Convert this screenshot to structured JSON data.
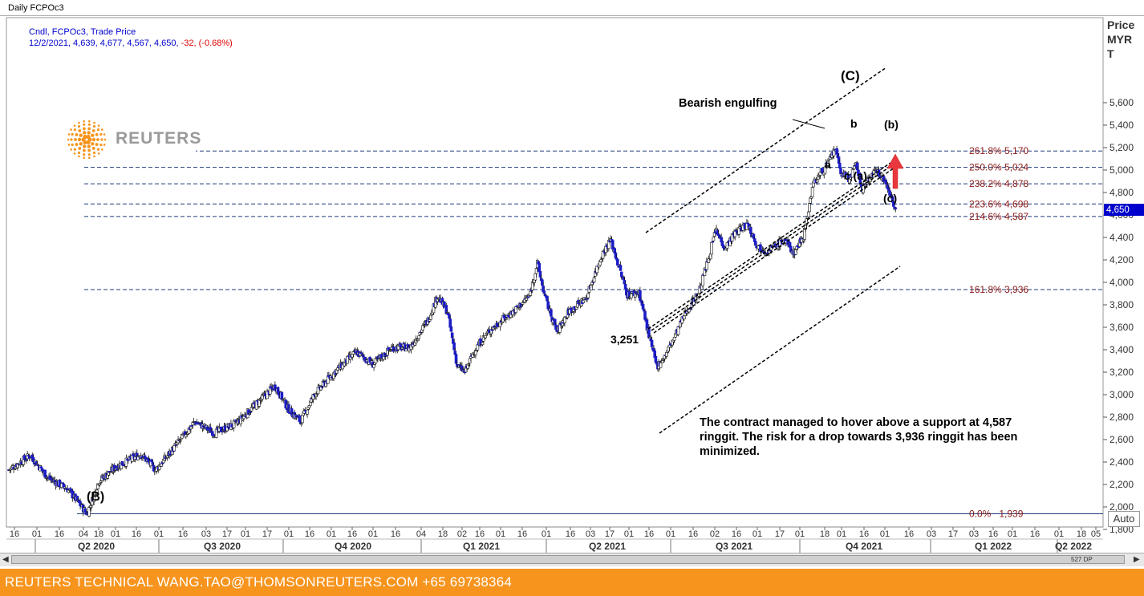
{
  "window": {
    "title": "Daily FCPOc3"
  },
  "watermark": {
    "text": "REUTERS"
  },
  "footer": {
    "text": "REUTERS TECHNICAL  WANG.TAO@THOMSONREUTERS.COM  +65 69738364"
  },
  "controls": {
    "auto_label": "Auto",
    "scroll_readout": "527 DP"
  },
  "colors": {
    "up_candle": "#ffffff",
    "down_candle": "#1c1cc8",
    "fib_line": "#1f3a7a",
    "fib_label": "#8b1a1a",
    "price_tag": "#0000cc",
    "arrow": "#e8383d"
  },
  "chart_data": {
    "type": "candlestick",
    "legend": {
      "series": "Cndl, FCPOc3, Trade Price",
      "ohlc": "12/2/2021, 4,639, 4,677, 4,567, 4,650,",
      "change": "-32, (-0.68%)"
    },
    "ylabel_lines": [
      "Price",
      "MYR",
      "T"
    ],
    "ylim": [
      1660,
      5760
    ],
    "yticks": [
      "5,600",
      "5,400",
      "5,200",
      "5,000",
      "4,800",
      "4,600",
      "4,400",
      "4,200",
      "4,000",
      "3,800",
      "3,600",
      "3,400",
      "3,200",
      "3,000",
      "2,800",
      "2,600",
      "2,400",
      "2,200",
      "2,000",
      "1,800"
    ],
    "last_price_label": "4,650",
    "last_price": 4650,
    "x_day_ticks": [
      "16",
      "01",
      "16",
      "04",
      "18",
      "01",
      "16",
      "01",
      "16",
      "03",
      "17",
      "01",
      "17",
      "01",
      "16",
      "01",
      "16",
      "01",
      "16",
      "04",
      "18",
      "02",
      "16",
      "01",
      "16",
      "01",
      "16",
      "03",
      "17",
      "01",
      "16",
      "01",
      "16",
      "02",
      "16",
      "01",
      "17",
      "01",
      "18",
      "01",
      "16",
      "01",
      "16",
      "03",
      "17",
      "03",
      "16",
      "01",
      "16",
      "01",
      "18",
      "05"
    ],
    "x_quarter_ticks": [
      "Q2 2020",
      "Q3 2020",
      "Q4 2020",
      "Q1 2021",
      "Q2 2021",
      "Q3 2021",
      "Q4 2021",
      "Q1 2022",
      "Q2 2022"
    ],
    "fib_levels": [
      {
        "label": "261.8% 5,170",
        "value": 5170
      },
      {
        "label": "250.0% 5,024",
        "value": 5024
      },
      {
        "label": "238.2% 4,878",
        "value": 4878
      },
      {
        "label": "223.6% 4,698",
        "value": 4698
      },
      {
        "label": "214.6% 4,587",
        "value": 4587
      },
      {
        "label": "161.8% 3,936",
        "value": 3936
      },
      {
        "label": "0.0%   1,939",
        "value": 1939
      }
    ],
    "waypoints": [
      [
        0,
        2330
      ],
      [
        22,
        2460
      ],
      [
        40,
        2260
      ],
      [
        60,
        2160
      ],
      [
        72,
        2030
      ],
      [
        80,
        1939
      ],
      [
        92,
        2230
      ],
      [
        110,
        2360
      ],
      [
        135,
        2470
      ],
      [
        150,
        2330
      ],
      [
        172,
        2560
      ],
      [
        190,
        2760
      ],
      [
        210,
        2660
      ],
      [
        232,
        2740
      ],
      [
        258,
        2960
      ],
      [
        272,
        3080
      ],
      [
        285,
        2880
      ],
      [
        298,
        2760
      ],
      [
        312,
        3000
      ],
      [
        335,
        3220
      ],
      [
        355,
        3380
      ],
      [
        372,
        3270
      ],
      [
        392,
        3420
      ],
      [
        410,
        3420
      ],
      [
        428,
        3660
      ],
      [
        438,
        3880
      ],
      [
        448,
        3740
      ],
      [
        458,
        3260
      ],
      [
        466,
        3200
      ],
      [
        476,
        3400
      ],
      [
        490,
        3560
      ],
      [
        505,
        3670
      ],
      [
        518,
        3760
      ],
      [
        532,
        3880
      ],
      [
        540,
        4170
      ],
      [
        548,
        3860
      ],
      [
        560,
        3560
      ],
      [
        572,
        3740
      ],
      [
        590,
        3860
      ],
      [
        605,
        4230
      ],
      [
        615,
        4380
      ],
      [
        624,
        4120
      ],
      [
        632,
        3890
      ],
      [
        644,
        3910
      ],
      [
        656,
        3450
      ],
      [
        662,
        3250
      ],
      [
        670,
        3340
      ],
      [
        680,
        3510
      ],
      [
        692,
        3740
      ],
      [
        705,
        3910
      ],
      [
        715,
        4220
      ],
      [
        722,
        4460
      ],
      [
        732,
        4310
      ],
      [
        742,
        4440
      ],
      [
        755,
        4520
      ],
      [
        765,
        4320
      ],
      [
        775,
        4280
      ],
      [
        783,
        4320
      ],
      [
        792,
        4380
      ],
      [
        802,
        4260
      ],
      [
        812,
        4420
      ],
      [
        822,
        4880
      ],
      [
        830,
        4980
      ],
      [
        838,
        5070
      ],
      [
        844,
        5190
      ],
      [
        850,
        4980
      ],
      [
        858,
        4920
      ],
      [
        866,
        5040
      ],
      [
        872,
        4830
      ],
      [
        880,
        4940
      ],
      [
        888,
        5000
      ],
      [
        896,
        4880
      ],
      [
        902,
        4760
      ],
      [
        906,
        4650
      ]
    ],
    "annotations": [
      {
        "id": "label-B",
        "text": "(B)"
      },
      {
        "id": "label-C",
        "text": "(C)"
      },
      {
        "id": "label-low",
        "text": "3,251"
      },
      {
        "id": "label-bearish",
        "text": "Bearish engulfing"
      },
      {
        "id": "label-a",
        "text": "a"
      },
      {
        "id": "label-b",
        "text": "b"
      },
      {
        "id": "label-c-a",
        "text": "c (a)"
      },
      {
        "id": "label-b2",
        "text": "(b)"
      },
      {
        "id": "label-c2",
        "text": "(c)"
      }
    ],
    "note": "The contract managed to hover above a support at 4,587 ringgit. The risk for a drop towards 3,936 ringgit has been minimized."
  }
}
